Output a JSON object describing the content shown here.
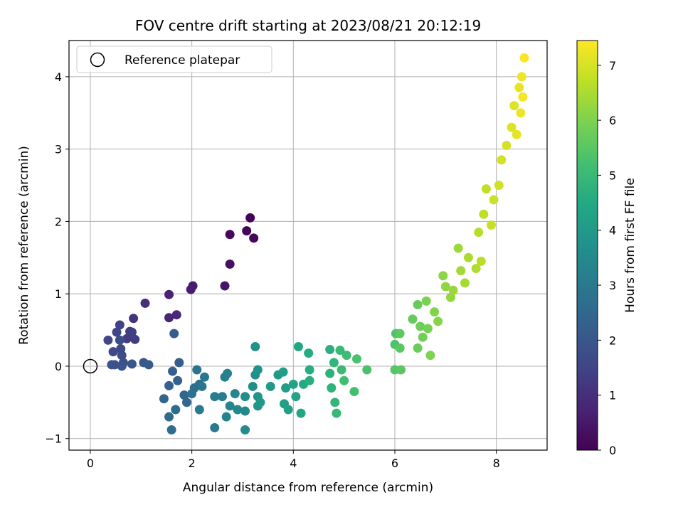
{
  "chart_data": {
    "type": "scatter",
    "title": "FOV centre drift starting at 2023/08/21 20:12:19",
    "xlabel": "Angular distance from reference (arcmin)",
    "ylabel": "Rotation from reference (arcmin)",
    "xlim": [
      -0.42,
      9.0
    ],
    "ylim": [
      -1.16,
      4.5
    ],
    "xticks": [
      0,
      2,
      4,
      6,
      8
    ],
    "yticks": [
      -1,
      0,
      1,
      2,
      3,
      4
    ],
    "xtick_labels": [
      "0",
      "2",
      "4",
      "6",
      "8"
    ],
    "ytick_labels": [
      "−1",
      "0",
      "1",
      "2",
      "3",
      "4"
    ],
    "grid": true,
    "legend": {
      "position": "top-left",
      "label": "Reference platepar"
    },
    "reference_point": {
      "x": 0,
      "y": 0
    },
    "colorbar": {
      "label": "Hours from first FF file",
      "range": [
        0,
        7.45
      ],
      "ticks": [
        0,
        1,
        2,
        3,
        4,
        5,
        6,
        7
      ],
      "tick_labels": [
        "0",
        "1",
        "2",
        "3",
        "4",
        "5",
        "6",
        "7"
      ],
      "colormap": "viridis"
    },
    "points": [
      {
        "x": 3.15,
        "y": 2.05,
        "t": 0.05
      },
      {
        "x": 3.08,
        "y": 1.87,
        "t": 0.1
      },
      {
        "x": 3.22,
        "y": 1.77,
        "t": 0.15
      },
      {
        "x": 2.75,
        "y": 1.82,
        "t": 0.2
      },
      {
        "x": 2.75,
        "y": 1.41,
        "t": 0.3
      },
      {
        "x": 2.65,
        "y": 1.11,
        "t": 0.4
      },
      {
        "x": 2.02,
        "y": 1.11,
        "t": 0.55
      },
      {
        "x": 1.98,
        "y": 1.06,
        "t": 0.6
      },
      {
        "x": 1.55,
        "y": 0.99,
        "t": 0.7
      },
      {
        "x": 1.55,
        "y": 0.67,
        "t": 0.8
      },
      {
        "x": 1.7,
        "y": 0.71,
        "t": 0.85
      },
      {
        "x": 1.08,
        "y": 0.87,
        "t": 1.0
      },
      {
        "x": 0.85,
        "y": 0.66,
        "t": 1.1
      },
      {
        "x": 0.78,
        "y": 0.48,
        "t": 1.2
      },
      {
        "x": 0.72,
        "y": 0.38,
        "t": 1.3
      },
      {
        "x": 0.88,
        "y": 0.37,
        "t": 1.35
      },
      {
        "x": 0.82,
        "y": 0.47,
        "t": 1.4
      },
      {
        "x": 0.58,
        "y": 0.57,
        "t": 1.45
      },
      {
        "x": 0.52,
        "y": 0.47,
        "t": 1.5
      },
      {
        "x": 0.35,
        "y": 0.36,
        "t": 1.55
      },
      {
        "x": 0.45,
        "y": 0.2,
        "t": 1.6
      },
      {
        "x": 0.6,
        "y": 0.24,
        "t": 1.65
      },
      {
        "x": 0.62,
        "y": 0.15,
        "t": 1.7
      },
      {
        "x": 0.58,
        "y": 0.36,
        "t": 1.75
      },
      {
        "x": 0.65,
        "y": 0.05,
        "t": 1.8
      },
      {
        "x": 0.48,
        "y": 0.02,
        "t": 1.85
      },
      {
        "x": 0.42,
        "y": 0.02,
        "t": 1.9
      },
      {
        "x": 0.62,
        "y": 0.0,
        "t": 1.95
      },
      {
        "x": 0.82,
        "y": 0.03,
        "t": 2.0
      },
      {
        "x": 1.05,
        "y": 0.05,
        "t": 2.05
      },
      {
        "x": 1.15,
        "y": 0.02,
        "t": 2.1
      },
      {
        "x": 1.65,
        "y": 0.45,
        "t": 2.15
      },
      {
        "x": 1.75,
        "y": 0.05,
        "t": 2.2
      },
      {
        "x": 1.62,
        "y": -0.07,
        "t": 2.25
      },
      {
        "x": 1.55,
        "y": -0.27,
        "t": 2.3
      },
      {
        "x": 1.72,
        "y": -0.2,
        "t": 2.35
      },
      {
        "x": 1.45,
        "y": -0.45,
        "t": 2.4
      },
      {
        "x": 1.85,
        "y": -0.4,
        "t": 2.45
      },
      {
        "x": 1.9,
        "y": -0.5,
        "t": 2.5
      },
      {
        "x": 1.55,
        "y": -0.7,
        "t": 2.55
      },
      {
        "x": 1.68,
        "y": -0.6,
        "t": 2.6
      },
      {
        "x": 1.6,
        "y": -0.88,
        "t": 2.65
      },
      {
        "x": 2.05,
        "y": -0.3,
        "t": 2.7
      },
      {
        "x": 2.15,
        "y": -0.25,
        "t": 2.75
      },
      {
        "x": 2.0,
        "y": -0.38,
        "t": 2.8
      },
      {
        "x": 2.1,
        "y": -0.05,
        "t": 2.85
      },
      {
        "x": 2.2,
        "y": -0.28,
        "t": 2.9
      },
      {
        "x": 2.25,
        "y": -0.15,
        "t": 2.95
      },
      {
        "x": 2.15,
        "y": -0.6,
        "t": 3.0
      },
      {
        "x": 2.45,
        "y": -0.85,
        "t": 3.05
      },
      {
        "x": 2.45,
        "y": -0.42,
        "t": 3.1
      },
      {
        "x": 2.6,
        "y": -0.42,
        "t": 3.15
      },
      {
        "x": 2.65,
        "y": -0.15,
        "t": 3.2
      },
      {
        "x": 2.7,
        "y": -0.1,
        "t": 3.25
      },
      {
        "x": 2.68,
        "y": -0.7,
        "t": 3.3
      },
      {
        "x": 2.75,
        "y": -0.55,
        "t": 3.35
      },
      {
        "x": 2.85,
        "y": -0.38,
        "t": 3.4
      },
      {
        "x": 2.9,
        "y": -0.6,
        "t": 3.45
      },
      {
        "x": 3.05,
        "y": -0.62,
        "t": 3.5
      },
      {
        "x": 3.05,
        "y": -0.88,
        "t": 3.55
      },
      {
        "x": 3.05,
        "y": -0.42,
        "t": 3.6
      },
      {
        "x": 3.2,
        "y": -0.28,
        "t": 3.65
      },
      {
        "x": 3.25,
        "y": -0.12,
        "t": 3.7
      },
      {
        "x": 3.3,
        "y": -0.05,
        "t": 3.75
      },
      {
        "x": 3.25,
        "y": 0.27,
        "t": 3.8
      },
      {
        "x": 3.3,
        "y": -0.42,
        "t": 3.85
      },
      {
        "x": 3.3,
        "y": -0.55,
        "t": 3.9
      },
      {
        "x": 3.35,
        "y": -0.5,
        "t": 3.95
      },
      {
        "x": 3.55,
        "y": -0.28,
        "t": 4.0
      },
      {
        "x": 3.7,
        "y": -0.12,
        "t": 4.05
      },
      {
        "x": 3.8,
        "y": -0.08,
        "t": 4.1
      },
      {
        "x": 3.85,
        "y": -0.3,
        "t": 4.15
      },
      {
        "x": 3.82,
        "y": -0.52,
        "t": 4.2
      },
      {
        "x": 3.9,
        "y": -0.6,
        "t": 4.25
      },
      {
        "x": 4.0,
        "y": -0.25,
        "t": 4.3
      },
      {
        "x": 4.05,
        "y": -0.42,
        "t": 4.35
      },
      {
        "x": 4.1,
        "y": 0.27,
        "t": 4.4
      },
      {
        "x": 4.15,
        "y": -0.65,
        "t": 4.45
      },
      {
        "x": 4.2,
        "y": -0.25,
        "t": 4.5
      },
      {
        "x": 4.3,
        "y": 0.18,
        "t": 4.55
      },
      {
        "x": 4.32,
        "y": -0.05,
        "t": 4.6
      },
      {
        "x": 4.32,
        "y": -0.2,
        "t": 4.65
      },
      {
        "x": 4.72,
        "y": 0.23,
        "t": 4.7
      },
      {
        "x": 4.72,
        "y": -0.1,
        "t": 4.75
      },
      {
        "x": 4.75,
        "y": -0.3,
        "t": 4.8
      },
      {
        "x": 4.8,
        "y": 0.05,
        "t": 4.85
      },
      {
        "x": 4.82,
        "y": -0.5,
        "t": 4.9
      },
      {
        "x": 4.85,
        "y": -0.65,
        "t": 4.95
      },
      {
        "x": 4.92,
        "y": 0.22,
        "t": 5.0
      },
      {
        "x": 4.95,
        "y": -0.05,
        "t": 5.05
      },
      {
        "x": 5.05,
        "y": 0.15,
        "t": 5.1
      },
      {
        "x": 5.0,
        "y": -0.2,
        "t": 5.15
      },
      {
        "x": 5.2,
        "y": -0.35,
        "t": 5.2
      },
      {
        "x": 5.25,
        "y": 0.1,
        "t": 5.25
      },
      {
        "x": 5.45,
        "y": -0.05,
        "t": 5.3
      },
      {
        "x": 6.0,
        "y": 0.3,
        "t": 5.35
      },
      {
        "x": 6.02,
        "y": 0.45,
        "t": 5.4
      },
      {
        "x": 6.0,
        "y": -0.05,
        "t": 5.45
      },
      {
        "x": 6.1,
        "y": 0.25,
        "t": 5.5
      },
      {
        "x": 6.12,
        "y": -0.05,
        "t": 5.55
      },
      {
        "x": 6.1,
        "y": 0.45,
        "t": 5.6
      },
      {
        "x": 6.35,
        "y": 0.65,
        "t": 5.65
      },
      {
        "x": 6.45,
        "y": 0.85,
        "t": 5.7
      },
      {
        "x": 6.45,
        "y": 0.25,
        "t": 5.75
      },
      {
        "x": 6.5,
        "y": 0.55,
        "t": 5.8
      },
      {
        "x": 6.55,
        "y": 0.4,
        "t": 5.85
      },
      {
        "x": 6.65,
        "y": 0.52,
        "t": 5.9
      },
      {
        "x": 6.62,
        "y": 0.9,
        "t": 5.95
      },
      {
        "x": 6.7,
        "y": 0.15,
        "t": 6.0
      },
      {
        "x": 6.78,
        "y": 0.75,
        "t": 6.05
      },
      {
        "x": 6.85,
        "y": 0.62,
        "t": 6.1
      },
      {
        "x": 6.95,
        "y": 1.25,
        "t": 6.15
      },
      {
        "x": 7.0,
        "y": 1.1,
        "t": 6.2
      },
      {
        "x": 7.1,
        "y": 0.95,
        "t": 6.25
      },
      {
        "x": 7.15,
        "y": 1.05,
        "t": 6.3
      },
      {
        "x": 7.25,
        "y": 1.63,
        "t": 6.35
      },
      {
        "x": 7.3,
        "y": 1.32,
        "t": 6.4
      },
      {
        "x": 7.38,
        "y": 1.15,
        "t": 6.45
      },
      {
        "x": 7.45,
        "y": 1.5,
        "t": 6.5
      },
      {
        "x": 7.6,
        "y": 1.35,
        "t": 6.55
      },
      {
        "x": 7.65,
        "y": 1.85,
        "t": 6.6
      },
      {
        "x": 7.7,
        "y": 1.45,
        "t": 6.65
      },
      {
        "x": 7.75,
        "y": 2.1,
        "t": 6.7
      },
      {
        "x": 7.8,
        "y": 2.45,
        "t": 6.75
      },
      {
        "x": 7.9,
        "y": 1.95,
        "t": 6.8
      },
      {
        "x": 7.95,
        "y": 2.3,
        "t": 6.85
      },
      {
        "x": 8.05,
        "y": 2.5,
        "t": 6.9
      },
      {
        "x": 8.1,
        "y": 2.85,
        "t": 6.95
      },
      {
        "x": 8.2,
        "y": 3.05,
        "t": 7.0
      },
      {
        "x": 8.3,
        "y": 3.3,
        "t": 7.05
      },
      {
        "x": 8.35,
        "y": 3.6,
        "t": 7.1
      },
      {
        "x": 8.4,
        "y": 3.2,
        "t": 7.15
      },
      {
        "x": 8.45,
        "y": 3.85,
        "t": 7.2
      },
      {
        "x": 8.48,
        "y": 3.5,
        "t": 7.25
      },
      {
        "x": 8.5,
        "y": 4.0,
        "t": 7.3
      },
      {
        "x": 8.52,
        "y": 3.72,
        "t": 7.35
      },
      {
        "x": 8.55,
        "y": 4.26,
        "t": 7.4
      }
    ]
  }
}
